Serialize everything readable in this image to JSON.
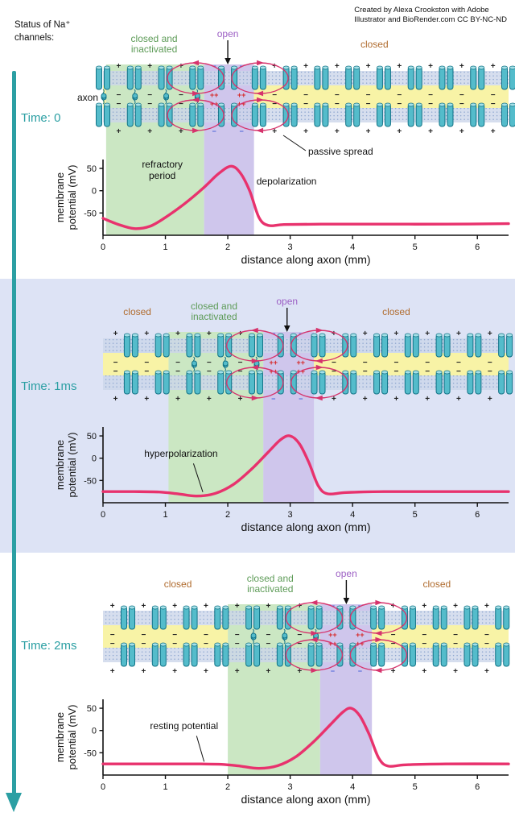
{
  "credit": {
    "line1": "Created by Alexa Crookston with Adobe",
    "line2": "Illustrator and BioRender.com CC BY-NC-ND"
  },
  "status_header": {
    "line1": "Status of Na⁺",
    "line2": "channels:"
  },
  "labels": {
    "open": "open",
    "closed": "closed",
    "closed_inactivated_line1": "closed and",
    "closed_inactivated_line2": "inactivated",
    "axon": "axon",
    "passive_spread": "passive spread",
    "plus": "+",
    "minus": "−",
    "plus_plus": "++"
  },
  "colors": {
    "teal_accent": "#2b9fa3",
    "curve_pink": "#e8326d",
    "loop_pink": "#d6336c",
    "green_region": "#cbe7c3",
    "purple_region": "#cfc6ec",
    "yellow_interior": "#f8f3a6",
    "membrane_base": "#ccd6ea",
    "membrane_dot": "#8ea6cf",
    "channel_fill": "#54bccb",
    "channel_light": "#a5e1e8",
    "channel_stroke": "#127387",
    "green_text": "#5d9b57",
    "purple_text": "#9c5fc4",
    "orange_text": "#b06c2f",
    "red_charge": "#d62828",
    "blue_charge": "#4a63d8",
    "panel2_background": "#dde3f5",
    "ink": "#111111"
  },
  "panels": [
    {
      "time_label": "Time: 0",
      "open_mm": 2.0,
      "green_mm": [
        0.05,
        1.62
      ],
      "purple_mm": [
        1.62,
        2.42
      ],
      "statuses": [
        {
          "key": "closed_inactivated",
          "mm": 0.82
        },
        {
          "key": "open",
          "mm": 2.0
        },
        {
          "key": "closed",
          "mm": 4.35
        }
      ],
      "show_axon_label": true,
      "show_passive_spread": true,
      "chart_index": 0
    },
    {
      "time_label": "Time: 1ms",
      "open_mm": 2.95,
      "green_mm": [
        1.05,
        2.57
      ],
      "purple_mm": [
        2.57,
        3.38
      ],
      "statuses": [
        {
          "key": "closed",
          "mm": 0.55
        },
        {
          "key": "closed_inactivated",
          "mm": 1.78
        },
        {
          "key": "open",
          "mm": 2.95
        },
        {
          "key": "closed",
          "mm": 4.7
        }
      ],
      "chart_index": 1
    },
    {
      "time_label": "Time: 2ms",
      "open_mm": 3.9,
      "green_mm": [
        2.0,
        3.48
      ],
      "purple_mm": [
        3.48,
        4.31
      ],
      "statuses": [
        {
          "key": "closed",
          "mm": 1.2
        },
        {
          "key": "closed_inactivated",
          "mm": 2.68
        },
        {
          "key": "open",
          "mm": 3.9
        },
        {
          "key": "closed",
          "mm": 5.35
        }
      ],
      "chart_index": 2
    }
  ],
  "chart_data": [
    {
      "type": "line",
      "title": "Time: 0",
      "xlabel": "distance along axon (mm)",
      "ylabel": [
        "membrane",
        "potential (mV)"
      ],
      "x_range": [
        0,
        6.5
      ],
      "y_range": [
        -100,
        70
      ],
      "x_ticks": [
        0,
        1,
        2,
        3,
        4,
        5,
        6
      ],
      "y_ticks": [
        50,
        0,
        -50
      ],
      "grid": false,
      "regions": [
        {
          "label": "closed and inactivated",
          "color_key": "green_region",
          "x": [
            0.05,
            1.62
          ]
        },
        {
          "label": "open",
          "color_key": "purple_region",
          "x": [
            1.62,
            2.42
          ]
        }
      ],
      "series": [
        {
          "name": "membrane potential",
          "points": [
            [
              0,
              -62
            ],
            [
              0.25,
              -76
            ],
            [
              0.5,
              -85
            ],
            [
              0.75,
              -80
            ],
            [
              1.0,
              -60
            ],
            [
              1.3,
              -30
            ],
            [
              1.6,
              5
            ],
            [
              1.85,
              38
            ],
            [
              2.05,
              55
            ],
            [
              2.2,
              40
            ],
            [
              2.35,
              0
            ],
            [
              2.5,
              -60
            ],
            [
              2.65,
              -78
            ],
            [
              2.9,
              -76
            ],
            [
              3.5,
              -75
            ],
            [
              4.5,
              -75
            ],
            [
              5.5,
              -75
            ],
            [
              6.5,
              -74
            ]
          ]
        }
      ],
      "annotations": [
        {
          "lines": [
            "refractory",
            "period"
          ],
          "mm": 0.95,
          "mv": 52,
          "anchor": "middle"
        },
        {
          "lines": [
            "depolarization"
          ],
          "mm": 2.46,
          "mv": 14,
          "anchor": "start"
        }
      ]
    },
    {
      "type": "line",
      "title": "Time: 1ms",
      "xlabel": "distance along axon (mm)",
      "ylabel": [
        "membrane",
        "potential (mV)"
      ],
      "x_range": [
        0,
        6.5
      ],
      "y_range": [
        -100,
        70
      ],
      "x_ticks": [
        0,
        1,
        2,
        3,
        4,
        5,
        6
      ],
      "y_ticks": [
        50,
        0,
        -50
      ],
      "grid": false,
      "regions": [
        {
          "label": "closed and inactivated",
          "color_key": "green_region",
          "x": [
            1.05,
            2.57
          ]
        },
        {
          "label": "open",
          "color_key": "purple_region",
          "x": [
            2.57,
            3.38
          ]
        }
      ],
      "series": [
        {
          "name": "membrane potential",
          "points": [
            [
              0,
              -75
            ],
            [
              0.5,
              -75
            ],
            [
              0.9,
              -76
            ],
            [
              1.2,
              -80
            ],
            [
              1.5,
              -85
            ],
            [
              1.8,
              -79
            ],
            [
              2.1,
              -58
            ],
            [
              2.4,
              -22
            ],
            [
              2.65,
              14
            ],
            [
              2.85,
              42
            ],
            [
              3.0,
              50
            ],
            [
              3.15,
              32
            ],
            [
              3.3,
              -10
            ],
            [
              3.45,
              -62
            ],
            [
              3.6,
              -80
            ],
            [
              3.9,
              -77
            ],
            [
              4.5,
              -75
            ],
            [
              5.5,
              -75
            ],
            [
              6.5,
              -75
            ]
          ]
        }
      ],
      "annotations": [
        {
          "lines": [
            "hyperpolarization"
          ],
          "mm": 1.25,
          "mv": 3,
          "anchor": "middle",
          "pointer": [
            1.45,
            -12,
            1.6,
            -76
          ]
        }
      ]
    },
    {
      "type": "line",
      "title": "Time: 2ms",
      "xlabel": "distance along axon (mm)",
      "ylabel": [
        "membrane",
        "potential (mV)"
      ],
      "x_range": [
        0,
        6.5
      ],
      "y_range": [
        -100,
        70
      ],
      "x_ticks": [
        0,
        1,
        2,
        3,
        4,
        5,
        6
      ],
      "y_ticks": [
        50,
        0,
        -50
      ],
      "grid": false,
      "regions": [
        {
          "label": "closed and inactivated",
          "color_key": "green_region",
          "x": [
            2.0,
            3.48
          ]
        },
        {
          "label": "open",
          "color_key": "purple_region",
          "x": [
            3.48,
            4.31
          ]
        }
      ],
      "series": [
        {
          "name": "membrane potential",
          "points": [
            [
              0,
              -75
            ],
            [
              0.8,
              -75
            ],
            [
              1.5,
              -75
            ],
            [
              1.9,
              -76
            ],
            [
              2.2,
              -80
            ],
            [
              2.5,
              -85
            ],
            [
              2.8,
              -79
            ],
            [
              3.1,
              -58
            ],
            [
              3.4,
              -22
            ],
            [
              3.65,
              14
            ],
            [
              3.85,
              42
            ],
            [
              3.98,
              50
            ],
            [
              4.12,
              32
            ],
            [
              4.27,
              -10
            ],
            [
              4.42,
              -62
            ],
            [
              4.57,
              -80
            ],
            [
              4.85,
              -77
            ],
            [
              5.5,
              -75
            ],
            [
              6.5,
              -75
            ]
          ]
        }
      ],
      "annotations": [
        {
          "lines": [
            "resting potential"
          ],
          "mm": 1.3,
          "mv": 3,
          "anchor": "middle",
          "pointer": [
            1.5,
            -12,
            1.62,
            -70
          ]
        }
      ]
    }
  ]
}
